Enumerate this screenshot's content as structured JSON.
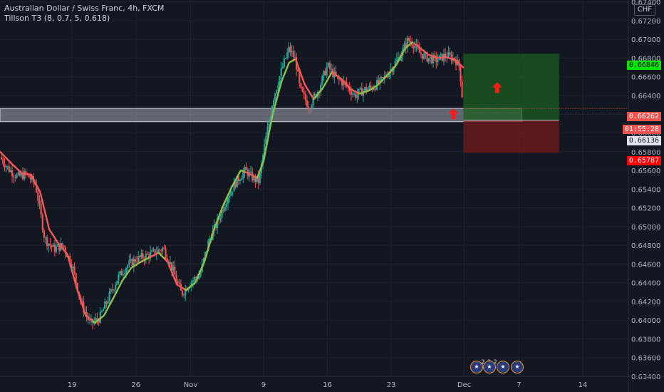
{
  "header": {
    "title": "Australian Dollar / Swiss Franc, 4h, FXCM",
    "indicator": "Tillson T3 (8, 0.7, 5, 0.618)"
  },
  "currency_label": "CHF",
  "price_tags": {
    "target": "0.66846",
    "last": "0.66262",
    "countdown": "01:55:28",
    "entry": "0.66136",
    "stop": "0.65787"
  },
  "events": {
    "count_label": "2 3 2"
  },
  "colors": {
    "background": "#131722",
    "up": "#26a69a",
    "down": "#ef5350",
    "t3_up": "#8bc34a",
    "t3_down": "#f05a5a",
    "profit_zone": "#1b5e20",
    "loss_zone": "#6d1b1b",
    "zone_box": "#b2b5be",
    "arrow": "#ff1a1a"
  },
  "chart_data": {
    "type": "candlestick",
    "symbol": "AUDCHF",
    "timeframe": "4h",
    "ylim": [
      0.634,
      0.6742
    ],
    "y_ticks": [
      "0.67400",
      "0.67200",
      "0.67000",
      "0.66800",
      "0.66600",
      "0.66400",
      "0.66200",
      "0.66000",
      "0.65800",
      "0.65600",
      "0.65400",
      "0.65200",
      "0.65000",
      "0.64800",
      "0.64600",
      "0.64400",
      "0.64200",
      "0.64000",
      "0.63800",
      "0.63600",
      "0.63400"
    ],
    "x_ticks": [
      {
        "label": "19",
        "day": 19
      },
      {
        "label": "26",
        "day": 26
      },
      {
        "label": "Nov",
        "day": 32
      },
      {
        "label": "9",
        "day": 40
      },
      {
        "label": "16",
        "day": 47
      },
      {
        "label": "23",
        "day": 54
      },
      {
        "label": "Dec",
        "day": 62
      },
      {
        "label": "7",
        "day": 68
      },
      {
        "label": "14",
        "day": 75
      }
    ],
    "x_range_days": [
      11.1,
      80.0
    ],
    "candles_per_day": 6,
    "close_path": [
      [
        11.1,
        0.6574
      ],
      [
        12.0,
        0.6562
      ],
      [
        13.0,
        0.6553
      ],
      [
        14.0,
        0.6556
      ],
      [
        15.0,
        0.6545
      ],
      [
        16.0,
        0.6487
      ],
      [
        17.0,
        0.6476
      ],
      [
        18.0,
        0.648
      ],
      [
        19.0,
        0.6459
      ],
      [
        20.0,
        0.6418
      ],
      [
        21.0,
        0.6396
      ],
      [
        22.0,
        0.6402
      ],
      [
        23.0,
        0.6424
      ],
      [
        24.0,
        0.6445
      ],
      [
        25.0,
        0.6458
      ],
      [
        26.0,
        0.6465
      ],
      [
        27.0,
        0.6468
      ],
      [
        28.0,
        0.6472
      ],
      [
        29.0,
        0.6477
      ],
      [
        30.0,
        0.6455
      ],
      [
        31.0,
        0.6428
      ],
      [
        32.0,
        0.6441
      ],
      [
        33.0,
        0.6448
      ],
      [
        34.0,
        0.6485
      ],
      [
        35.0,
        0.6506
      ],
      [
        36.0,
        0.6531
      ],
      [
        37.0,
        0.6548
      ],
      [
        38.0,
        0.656
      ],
      [
        38.8,
        0.6552
      ],
      [
        39.5,
        0.6548
      ],
      [
        40.0,
        0.658
      ],
      [
        41.0,
        0.6635
      ],
      [
        42.0,
        0.6668
      ],
      [
        42.8,
        0.669
      ],
      [
        43.5,
        0.6678
      ],
      [
        44.0,
        0.6646
      ],
      [
        45.0,
        0.6628
      ],
      [
        46.0,
        0.6646
      ],
      [
        47.0,
        0.6672
      ],
      [
        48.0,
        0.6658
      ],
      [
        49.0,
        0.6652
      ],
      [
        50.0,
        0.664
      ],
      [
        51.0,
        0.6646
      ],
      [
        52.0,
        0.6649
      ],
      [
        53.0,
        0.6656
      ],
      [
        54.0,
        0.6669
      ],
      [
        55.0,
        0.6683
      ],
      [
        55.8,
        0.6699
      ],
      [
        56.5,
        0.6695
      ],
      [
        57.0,
        0.6686
      ],
      [
        58.0,
        0.668
      ],
      [
        59.0,
        0.6678
      ],
      [
        60.0,
        0.6683
      ],
      [
        61.0,
        0.6679
      ],
      [
        61.5,
        0.667
      ],
      [
        61.9,
        0.6626
      ]
    ],
    "t3_path": [
      [
        11.1,
        0.658
      ],
      [
        12.5,
        0.6566
      ],
      [
        13.5,
        0.6557
      ],
      [
        14.5,
        0.6555
      ],
      [
        15.5,
        0.6537
      ],
      [
        16.5,
        0.6497
      ],
      [
        17.5,
        0.6482
      ],
      [
        18.5,
        0.647
      ],
      [
        19.5,
        0.6435
      ],
      [
        20.5,
        0.6405
      ],
      [
        21.5,
        0.6397
      ],
      [
        22.5,
        0.6405
      ],
      [
        23.5,
        0.6423
      ],
      [
        24.5,
        0.6442
      ],
      [
        25.5,
        0.6456
      ],
      [
        26.5,
        0.6462
      ],
      [
        27.5,
        0.6467
      ],
      [
        28.5,
        0.6472
      ],
      [
        29.5,
        0.6462
      ],
      [
        30.5,
        0.6438
      ],
      [
        31.5,
        0.6432
      ],
      [
        32.5,
        0.644
      ],
      [
        33.5,
        0.6462
      ],
      [
        34.5,
        0.6495
      ],
      [
        35.5,
        0.6521
      ],
      [
        36.5,
        0.6542
      ],
      [
        37.5,
        0.656
      ],
      [
        38.3,
        0.6557
      ],
      [
        39.3,
        0.6552
      ],
      [
        40.0,
        0.657
      ],
      [
        41.0,
        0.662
      ],
      [
        42.0,
        0.6656
      ],
      [
        42.8,
        0.6675
      ],
      [
        43.5,
        0.6679
      ],
      [
        44.5,
        0.6652
      ],
      [
        45.5,
        0.6636
      ],
      [
        46.5,
        0.6648
      ],
      [
        47.5,
        0.6665
      ],
      [
        48.5,
        0.6658
      ],
      [
        49.5,
        0.6647
      ],
      [
        50.5,
        0.6642
      ],
      [
        51.5,
        0.6645
      ],
      [
        52.5,
        0.6651
      ],
      [
        53.5,
        0.6661
      ],
      [
        54.5,
        0.6672
      ],
      [
        55.5,
        0.669
      ],
      [
        56.3,
        0.6697
      ],
      [
        57.0,
        0.6692
      ],
      [
        58.0,
        0.6684
      ],
      [
        59.0,
        0.668
      ],
      [
        60.0,
        0.6681
      ],
      [
        61.0,
        0.6678
      ],
      [
        61.9,
        0.667
      ]
    ],
    "t3_segments": [
      {
        "from": 11.1,
        "to": 21.3,
        "trend": "down"
      },
      {
        "from": 21.3,
        "to": 27.5,
        "trend": "up"
      },
      {
        "from": 27.5,
        "to": 28.5,
        "trend": "down"
      },
      {
        "from": 28.5,
        "to": 29.2,
        "trend": "up"
      },
      {
        "from": 29.2,
        "to": 31.4,
        "trend": "down"
      },
      {
        "from": 31.4,
        "to": 38.0,
        "trend": "up"
      },
      {
        "from": 38.0,
        "to": 39.3,
        "trend": "down"
      },
      {
        "from": 39.3,
        "to": 43.5,
        "trend": "up"
      },
      {
        "from": 43.5,
        "to": 45.5,
        "trend": "down"
      },
      {
        "from": 45.5,
        "to": 47.6,
        "trend": "up"
      },
      {
        "from": 47.6,
        "to": 50.5,
        "trend": "down"
      },
      {
        "from": 50.5,
        "to": 56.4,
        "trend": "up"
      },
      {
        "from": 56.4,
        "to": 61.9,
        "trend": "down"
      }
    ],
    "support_zone": {
      "x_from": 11.1,
      "x_to": 68.3,
      "y_low": 0.6612,
      "y_high": 0.66262
    },
    "position": {
      "x_from": 61.9,
      "x_to": 72.4,
      "entry": 0.66136,
      "target": 0.66846,
      "stop": 0.65787
    },
    "arrows": [
      {
        "day": 60.8,
        "price": 0.662
      },
      {
        "day": 65.6,
        "price": 0.6648
      }
    ]
  }
}
